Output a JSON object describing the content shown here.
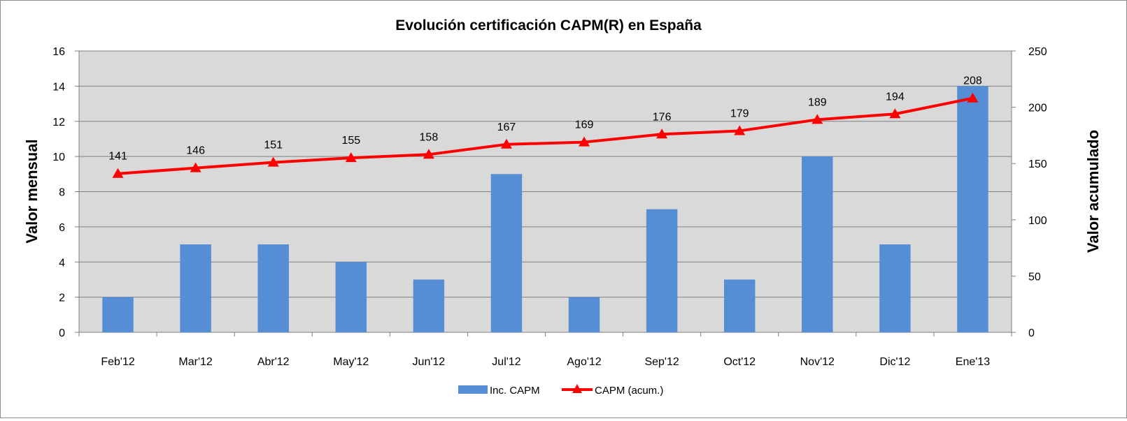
{
  "chart_data": {
    "type": "bar+line",
    "title": "Evolución certificación CAPM(R) en España",
    "categories": [
      "Feb'12",
      "Mar'12",
      "Abr'12",
      "May'12",
      "Jun'12",
      "Jul'12",
      "Ago'12",
      "Sep'12",
      "Oct'12",
      "Nov'12",
      "Dic'12",
      "Ene'13"
    ],
    "series": [
      {
        "name": "Inc. CAPM",
        "type": "bar",
        "axis": "left",
        "color": "#558ed5",
        "values": [
          2,
          5,
          5,
          4,
          3,
          9,
          2,
          7,
          3,
          10,
          5,
          14
        ]
      },
      {
        "name": "CAPM (acum.)",
        "type": "line",
        "axis": "right",
        "color": "#ff0000",
        "marker": "triangle",
        "values": [
          141,
          146,
          151,
          155,
          158,
          167,
          169,
          176,
          179,
          189,
          194,
          208
        ],
        "data_labels": [
          "141",
          "146",
          "151",
          "155",
          "158",
          "167",
          "169",
          "176",
          "179",
          "189",
          "194",
          "208"
        ]
      }
    ],
    "y_left": {
      "label": "Valor mensual",
      "range": [
        0,
        16
      ],
      "ticks": [
        "0",
        "2",
        "4",
        "6",
        "8",
        "10",
        "12",
        "14",
        "16"
      ]
    },
    "y_right": {
      "label": "Valor acumulado",
      "range": [
        0,
        250
      ],
      "ticks": [
        "0",
        "50",
        "100",
        "150",
        "200",
        "250"
      ]
    },
    "grid": true,
    "plot_background": "#d9d9d9",
    "legend_position": "bottom"
  }
}
